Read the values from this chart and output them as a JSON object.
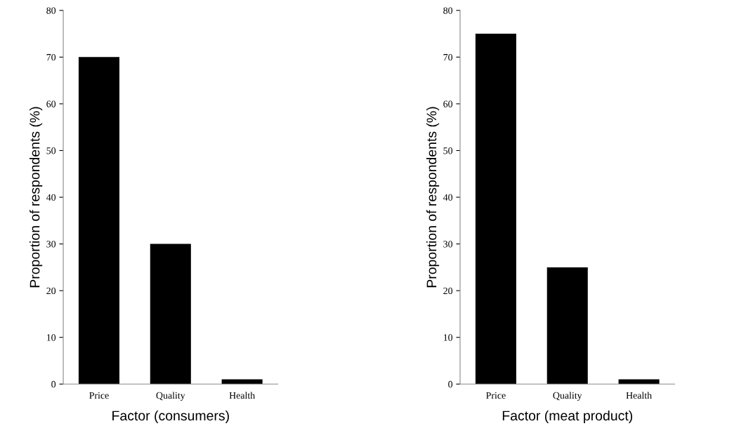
{
  "chart_data": [
    {
      "type": "bar",
      "xlabel": "Factor (consumers)",
      "ylabel": "Proportion of respondents (%)",
      "categories": [
        "Price",
        "Quality",
        "Health"
      ],
      "values": [
        70,
        30,
        1
      ],
      "color": "#000000",
      "ylim": [
        0,
        80
      ],
      "yticks": [
        0,
        10,
        20,
        30,
        40,
        50,
        60,
        70,
        80
      ],
      "grid": false,
      "legend": false
    },
    {
      "type": "bar",
      "xlabel": "Factor (meat product)",
      "ylabel": "Proportion of respondents (%)",
      "categories": [
        "Price",
        "Quality",
        "Health"
      ],
      "values": [
        75,
        25,
        1
      ],
      "color": "#000000",
      "ylim": [
        0,
        80
      ],
      "yticks": [
        0,
        10,
        20,
        30,
        40,
        50,
        60,
        70,
        80
      ],
      "grid": false,
      "legend": false
    }
  ]
}
